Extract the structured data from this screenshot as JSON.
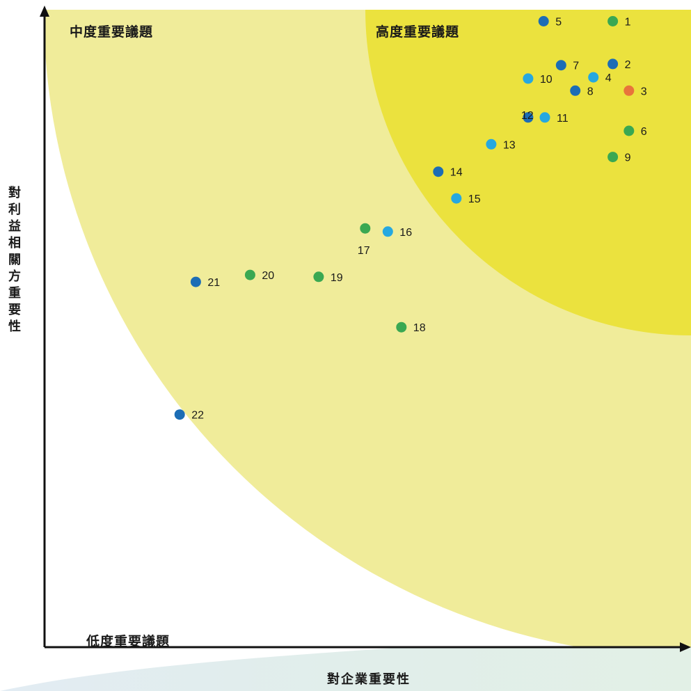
{
  "chart_data": {
    "type": "scatter",
    "title": "",
    "xlabel": "對企業重要性",
    "ylabel": "對利益相關方重要性",
    "xlim": [
      0,
      100
    ],
    "ylim": [
      0,
      100
    ],
    "grid": false,
    "zones": [
      {
        "name": "低度重要議題",
        "color": "#ffffff"
      },
      {
        "name": "中度重要議題",
        "color": "#f0ec9a"
      },
      {
        "name": "高度重要議題",
        "color": "#ebe23e"
      }
    ],
    "colors": {
      "dark_blue": "#1c6db5",
      "light_blue": "#26a8e0",
      "green": "#3aa852",
      "orange": "#e8743b"
    },
    "points": [
      {
        "label": "1",
        "x": 87.9,
        "y": 98.2,
        "color": "green"
      },
      {
        "label": "2",
        "x": 87.9,
        "y": 91.5,
        "color": "dark_blue"
      },
      {
        "label": "3",
        "x": 90.4,
        "y": 87.3,
        "color": "orange"
      },
      {
        "label": "4",
        "x": 84.9,
        "y": 89.4,
        "color": "light_blue"
      },
      {
        "label": "5",
        "x": 77.2,
        "y": 98.2,
        "color": "dark_blue"
      },
      {
        "label": "6",
        "x": 90.4,
        "y": 81.0,
        "color": "green"
      },
      {
        "label": "7",
        "x": 79.9,
        "y": 91.3,
        "color": "dark_blue"
      },
      {
        "label": "8",
        "x": 82.1,
        "y": 87.3,
        "color": "dark_blue"
      },
      {
        "label": "9",
        "x": 87.9,
        "y": 76.9,
        "color": "green"
      },
      {
        "label": "10",
        "x": 74.8,
        "y": 89.2,
        "color": "light_blue"
      },
      {
        "label": "11",
        "x": 77.4,
        "y": 83.1,
        "color": "light_blue"
      },
      {
        "label": "12",
        "x": 74.8,
        "y": 83.1,
        "color": "dark_blue"
      },
      {
        "label": "13",
        "x": 69.1,
        "y": 78.9,
        "color": "light_blue"
      },
      {
        "label": "14",
        "x": 60.9,
        "y": 74.6,
        "color": "dark_blue"
      },
      {
        "label": "15",
        "x": 63.7,
        "y": 70.4,
        "color": "light_blue"
      },
      {
        "label": "16",
        "x": 53.1,
        "y": 65.2,
        "color": "light_blue"
      },
      {
        "label": "17",
        "x": 49.6,
        "y": 65.7,
        "color": "green"
      },
      {
        "label": "18",
        "x": 55.2,
        "y": 50.2,
        "color": "green"
      },
      {
        "label": "19",
        "x": 42.4,
        "y": 58.1,
        "color": "green"
      },
      {
        "label": "20",
        "x": 31.8,
        "y": 58.4,
        "color": "green"
      },
      {
        "label": "21",
        "x": 23.4,
        "y": 57.3,
        "color": "dark_blue"
      },
      {
        "label": "22",
        "x": 20.9,
        "y": 36.5,
        "color": "dark_blue"
      }
    ]
  }
}
